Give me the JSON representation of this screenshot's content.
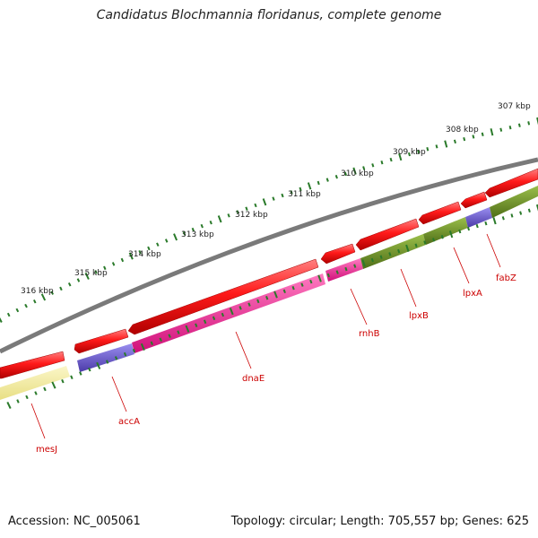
{
  "title": "Candidatus Blochmannia floridanus, complete genome",
  "footer": {
    "accession": "Accession: NC_005061",
    "stats": "Topology: circular; Length: 705,557 bp; Genes: 625"
  },
  "scale_labels": [
    "307 kbp",
    "308 kbp",
    "309 kbp",
    "310 kbp",
    "311 kbp",
    "312 kbp",
    "313 kbp",
    "314 kbp",
    "315 kbp",
    "316 kbp"
  ],
  "gene_labels": [
    "fabZ",
    "lpxA",
    "lpxB",
    "rnhB",
    "dnaE",
    "accA",
    "mesJ"
  ],
  "colors": {
    "backbone": "#7a7a7a",
    "forward_cds": "#ff1a1a",
    "yellow_gene": "#f0e68c",
    "purple_gene": "#6a5acd",
    "magenta_gene": "#ff1493",
    "olive_gene": "#6b8e23",
    "tick": "#2a7a2a",
    "label": "#cc0000"
  }
}
